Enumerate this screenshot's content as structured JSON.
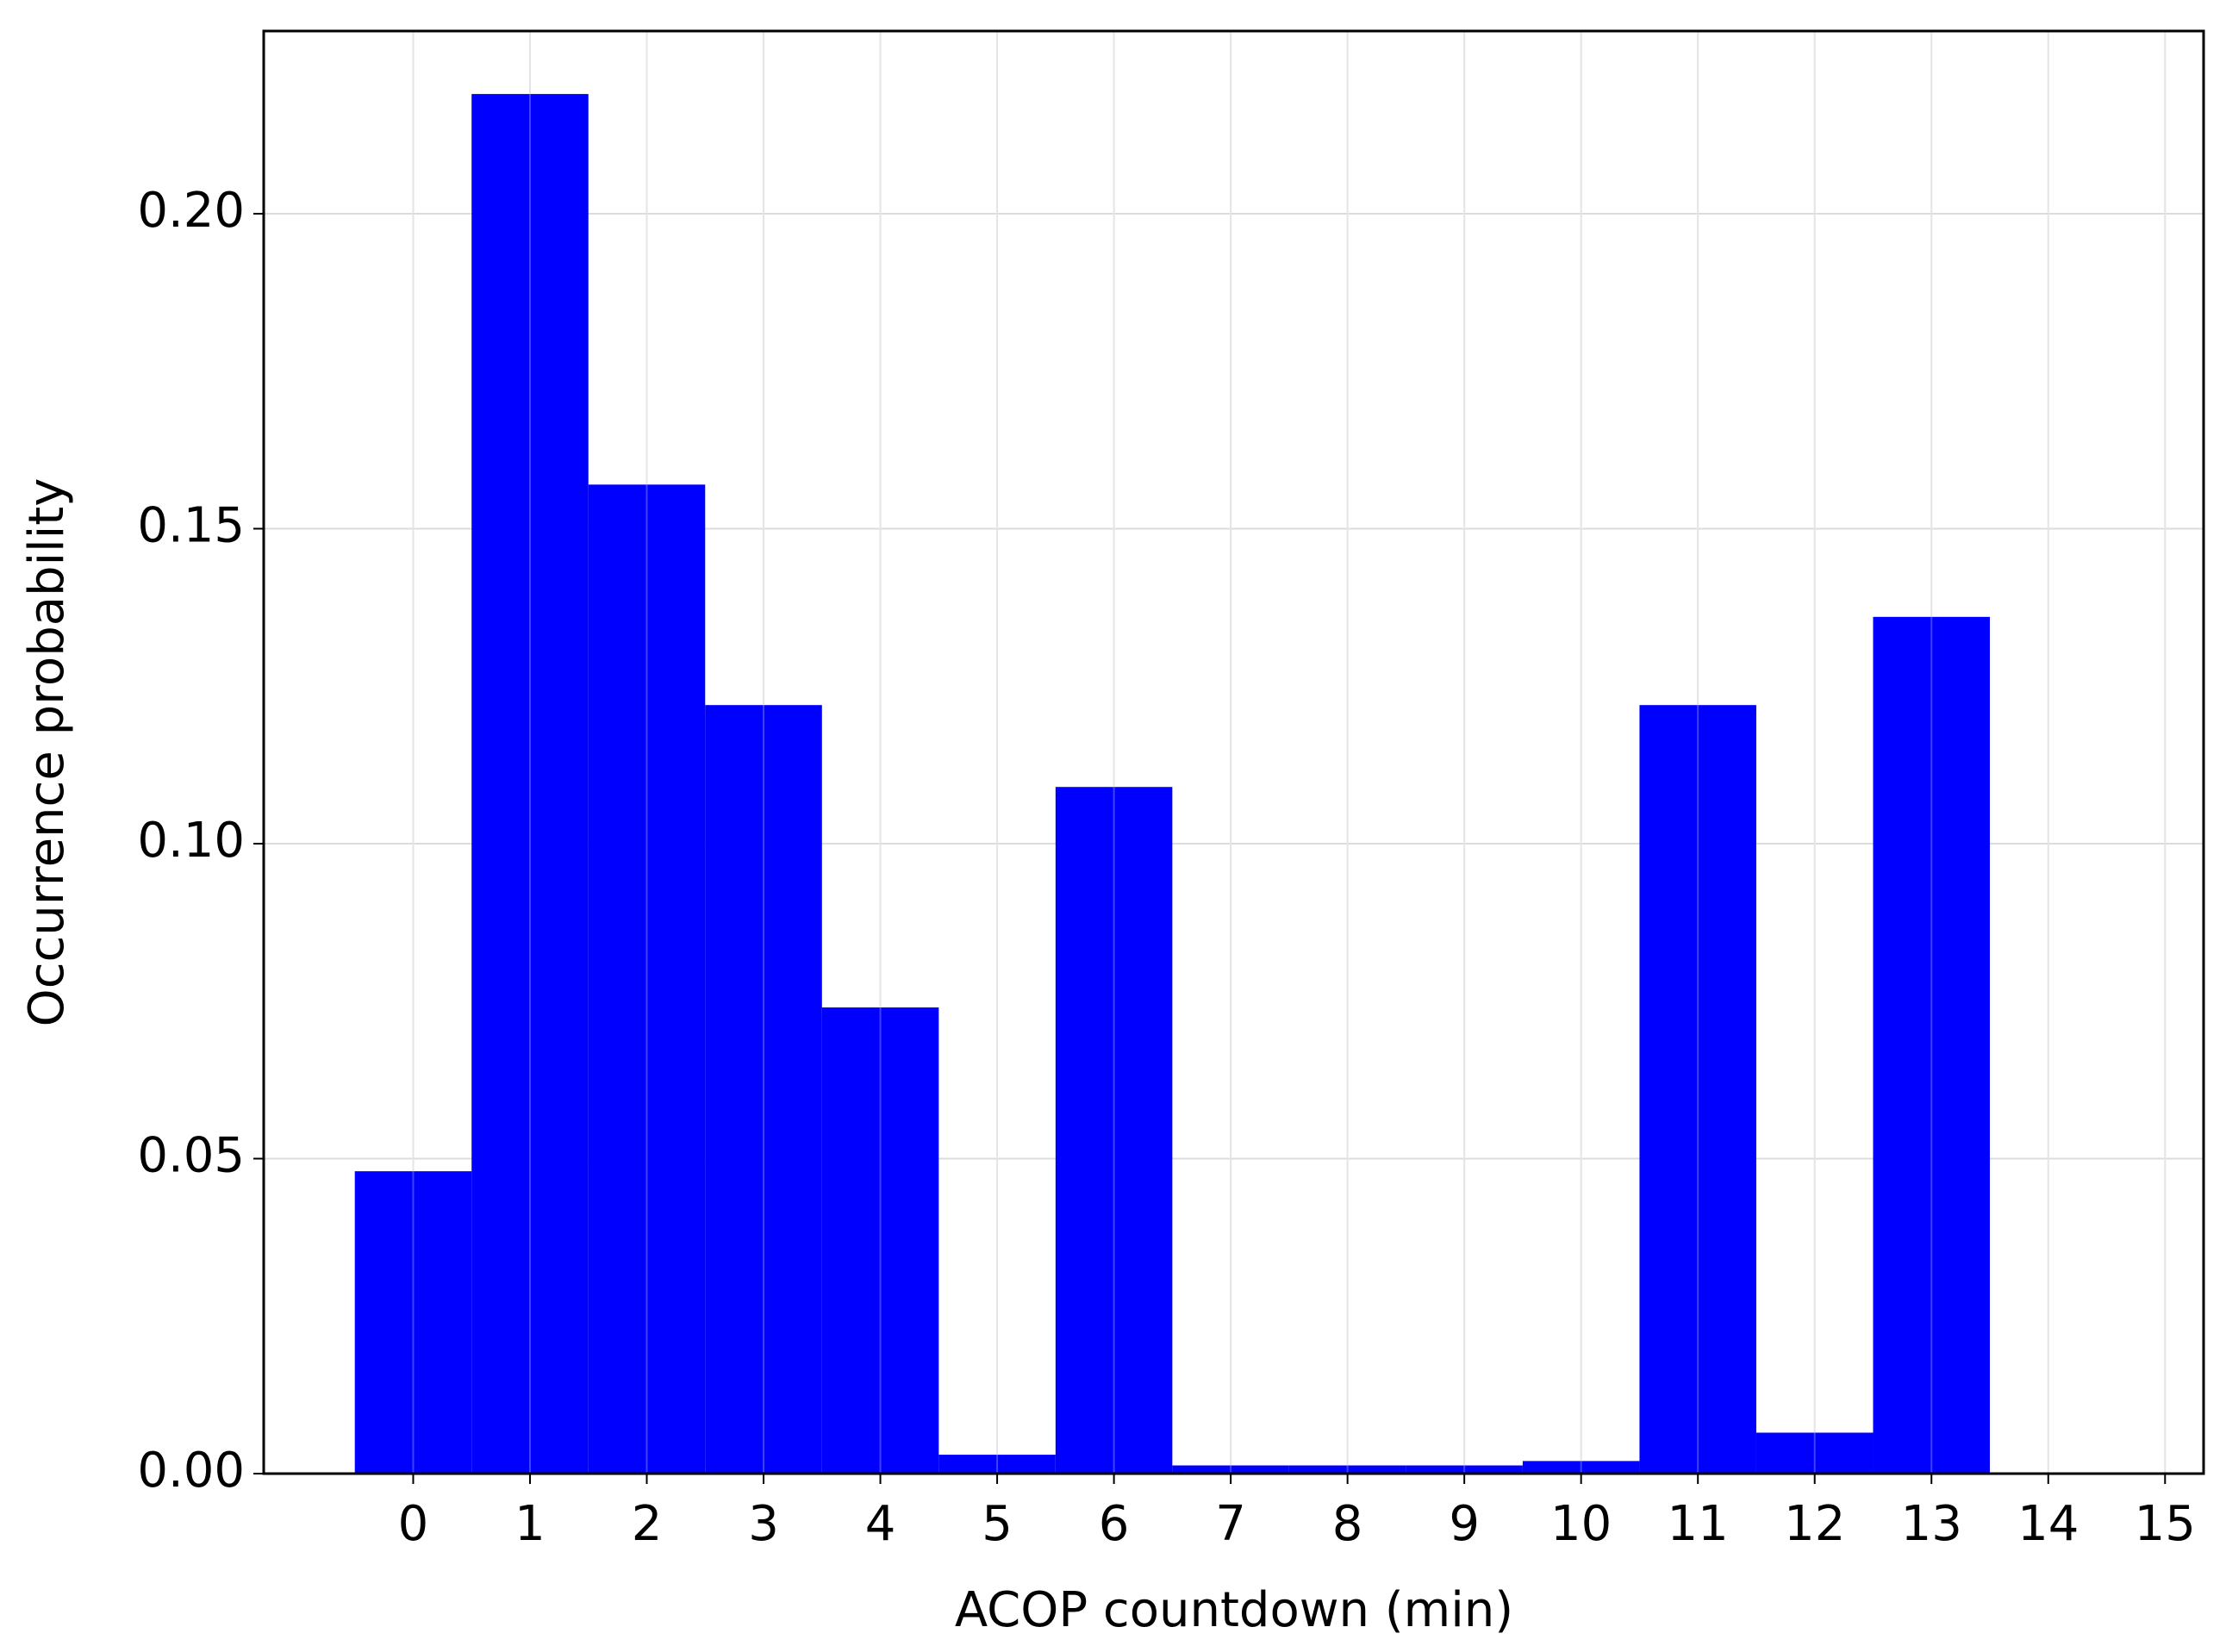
{
  "chart_data": {
    "type": "histogram",
    "x_label": "ACOP countdown (min)",
    "y_label": "Occurrence probability",
    "bins": [
      -0.5,
      0.5,
      1.5,
      2.5,
      3.5,
      4.5,
      5.5,
      6.5,
      7.5,
      8.5,
      9.5,
      10.5,
      11.5,
      12.5,
      13.5
    ],
    "values": [
      0.048,
      0.219,
      0.157,
      0.122,
      0.074,
      0.003,
      0.109,
      0.0013,
      0.0013,
      0.0013,
      0.002,
      0.122,
      0.0065,
      0.136
    ],
    "color": "#0000ff",
    "xlim": [
      -1.28,
      15.33
    ],
    "ylim": [
      0,
      0.229
    ],
    "xticks": [
      0,
      1,
      2,
      3,
      4,
      5,
      6,
      7,
      8,
      9,
      10,
      11,
      12,
      13,
      14,
      15
    ],
    "yticks": [
      {
        "value": 0,
        "label": "0.00"
      },
      {
        "value": 0.05,
        "label": "0.05"
      },
      {
        "value": 0.1,
        "label": "0.10"
      },
      {
        "value": 0.15,
        "label": "0.15"
      },
      {
        "value": 0.2,
        "label": "0.20"
      }
    ],
    "grid": true
  }
}
